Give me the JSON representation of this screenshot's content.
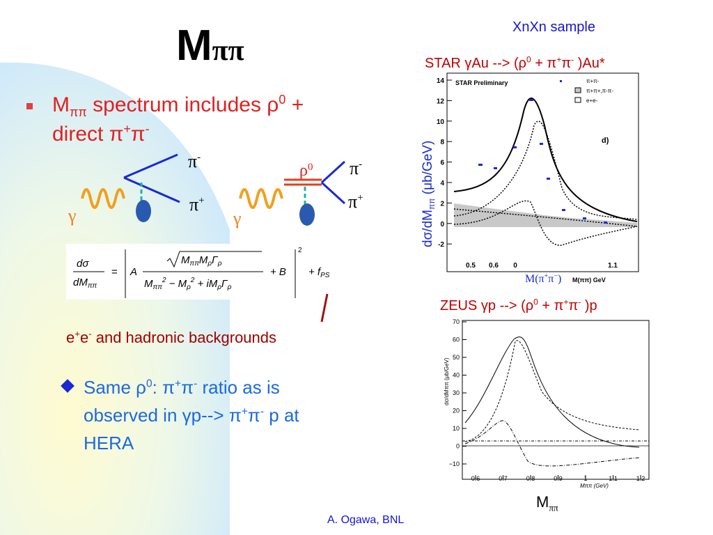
{
  "title": {
    "text": "M",
    "subscript": "ππ"
  },
  "sample_label": "XnXn sample",
  "star_caption": [
    "STAR γAu --> (ρ",
    "0",
    " + π",
    "+",
    "π",
    "-",
    " )Au*"
  ],
  "bullet1": {
    "line1": [
      "M",
      "ππ",
      " spectrum includes ρ",
      "0",
      " +"
    ],
    "line2": [
      "direct π",
      "+",
      "π",
      "-"
    ]
  },
  "diagram_left": {
    "out_top": [
      "π",
      "-"
    ],
    "out_bottom": [
      "π",
      "+"
    ],
    "photon": "γ"
  },
  "diagram_right": {
    "resonance": [
      "ρ",
      "0"
    ],
    "out_top": [
      "π",
      "-"
    ],
    "out_bottom": [
      "π",
      "+"
    ],
    "photon": "γ"
  },
  "formula": {
    "lhs_num": "dσ",
    "lhs_den": [
      "dM",
      "ππ"
    ],
    "eq": "=",
    "a": "A",
    "sqrt": [
      "M",
      "ππ",
      "M",
      "ρ",
      "Γ",
      "ρ"
    ],
    "den": [
      "M",
      "ππ",
      "2",
      " − M",
      "ρ",
      "2",
      " + iM",
      "ρ",
      "Γ",
      "ρ"
    ],
    "plus_b": "+ B",
    "power": "2",
    "plus_f": [
      "+ f",
      "PS"
    ]
  },
  "background_note": [
    "e",
    "+",
    "e",
    "-",
    " and hadronic backgrounds"
  ],
  "bullet2": {
    "line1": [
      "Same ρ",
      "0",
      ": π",
      "+",
      "π",
      "-",
      " ratio as is"
    ],
    "line2": [
      "observed in γp--> π",
      "+",
      "π",
      "-",
      " p at"
    ],
    "line3": "HERA"
  },
  "star_plot": {
    "inner_title": "STAR Preliminary",
    "legend": [
      "π+π-",
      "π+π+,π-π-",
      "e+e-"
    ],
    "panel": "d)",
    "yticks": [
      "14",
      "12",
      "10",
      "8",
      "6",
      "4",
      "2",
      "0",
      "-2"
    ],
    "xticks": [
      "0.5",
      "0.6",
      "0",
      "1.1"
    ],
    "xlabel": "M(ππ) GeV",
    "ylabel": [
      "dσ/dM",
      "ππ",
      " (μb/GeV)"
    ],
    "below": [
      "M(π",
      "+",
      "π",
      "−",
      ")"
    ]
  },
  "zeus_caption": [
    "ZEUS γp --> (ρ",
    "0",
    " + π",
    "+",
    "π",
    "-",
    " )p"
  ],
  "zeus_plot": {
    "yticks": [
      "70",
      "60",
      "50",
      "40",
      "30",
      "20",
      "10",
      "0",
      "−10"
    ],
    "xticks": [
      "0.6",
      "0.7",
      "0.8",
      "0.9",
      "1",
      "1.1",
      "1.2"
    ],
    "xlabel": "Mππ (GeV)",
    "ylabel": "dσ/dMππ (μb/GeV)"
  },
  "mass_label": [
    "M",
    "ππ"
  ],
  "footer": "A. Ogawa, BNL"
}
